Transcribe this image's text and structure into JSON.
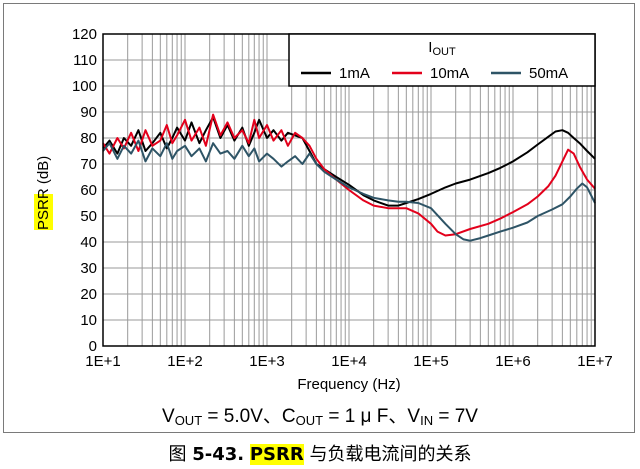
{
  "chart_data": {
    "type": "line",
    "ylabel": "PSRR (dB)",
    "xlabel": "Frequency (Hz)",
    "xscale": "log",
    "xlim": [
      10,
      10000000
    ],
    "ylim": [
      0,
      120
    ],
    "xticks": [
      10,
      100,
      1000,
      10000,
      100000,
      1000000,
      10000000
    ],
    "xticklabels": [
      "1E+1",
      "1E+2",
      "1E+3",
      "1E+4",
      "1E+5",
      "1E+6",
      "1E+7"
    ],
    "yticks": [
      0,
      10,
      20,
      30,
      40,
      50,
      60,
      70,
      80,
      90,
      100,
      110,
      120
    ],
    "grid": true,
    "legend": {
      "placement": "top-right",
      "title_main": "I",
      "title_sub": "OUT",
      "entries": [
        "1mA",
        "10mA",
        "50mA"
      ]
    },
    "series": [
      {
        "name": "1mA",
        "color": "#000000",
        "x": [
          10,
          12,
          15,
          18,
          22,
          27,
          33,
          40,
          50,
          60,
          70,
          80,
          100,
          120,
          150,
          180,
          220,
          270,
          330,
          400,
          500,
          600,
          700,
          800,
          1000,
          1200,
          1500,
          1800,
          2200,
          2700,
          3300,
          4000,
          5000,
          7000,
          10000,
          15000,
          20000,
          30000,
          40000,
          50000,
          70000,
          100000,
          150000,
          200000,
          300000,
          500000,
          700000,
          1000000,
          1500000,
          2000000,
          2700000,
          3300000,
          4000000,
          4700000,
          5500000,
          6500000,
          8000000,
          10000000
        ],
        "y": [
          76,
          79,
          74,
          80,
          77,
          83,
          75,
          78,
          82,
          76,
          80,
          84,
          79,
          86,
          78,
          83,
          88,
          80,
          85,
          79,
          84,
          77,
          82,
          87,
          80,
          83,
          79,
          82,
          81,
          80,
          75,
          70,
          68,
          65,
          62,
          58,
          56,
          54,
          54,
          55,
          56.5,
          58.5,
          61,
          62.5,
          64,
          66.5,
          68.5,
          71,
          74.5,
          77.5,
          80.5,
          82.5,
          83,
          82,
          80,
          78,
          75,
          72
        ]
      },
      {
        "name": "10mA",
        "color": "#e3001b",
        "x": [
          10,
          12,
          15,
          18,
          22,
          27,
          33,
          40,
          50,
          60,
          70,
          80,
          100,
          120,
          150,
          180,
          220,
          270,
          330,
          400,
          500,
          600,
          700,
          800,
          1000,
          1200,
          1500,
          1800,
          2200,
          2700,
          3300,
          4000,
          5000,
          7000,
          10000,
          15000,
          20000,
          30000,
          40000,
          50000,
          70000,
          100000,
          120000,
          150000,
          200000,
          300000,
          500000,
          700000,
          1000000,
          1500000,
          2000000,
          2700000,
          3300000,
          4000000,
          4700000,
          5500000,
          6500000,
          8000000,
          10000000
        ],
        "y": [
          78,
          74,
          80,
          76,
          82,
          75,
          83,
          77,
          79,
          85,
          78,
          81,
          87,
          79,
          84,
          77,
          89,
          81,
          86,
          80,
          83,
          78,
          87,
          80,
          85,
          79,
          83,
          77,
          82,
          80,
          77,
          72,
          68,
          64,
          60,
          56,
          54,
          53,
          53,
          53,
          51,
          47,
          44,
          42.5,
          43,
          45,
          47,
          49,
          51.5,
          54.5,
          57.5,
          61.5,
          65.5,
          71,
          75.5,
          74,
          69,
          64,
          60.5
        ]
      },
      {
        "name": "50mA",
        "color": "#2e5466",
        "x": [
          10,
          12,
          15,
          18,
          22,
          27,
          33,
          40,
          50,
          60,
          70,
          80,
          100,
          120,
          150,
          180,
          220,
          270,
          330,
          400,
          500,
          600,
          700,
          800,
          1000,
          1200,
          1500,
          1800,
          2200,
          2700,
          3300,
          4000,
          5000,
          7000,
          10000,
          15000,
          20000,
          30000,
          40000,
          50000,
          70000,
          100000,
          150000,
          200000,
          250000,
          300000,
          400000,
          500000,
          700000,
          1000000,
          1500000,
          2000000,
          3000000,
          4000000,
          5000000,
          6000000,
          7000000,
          8000000,
          10000000
        ],
        "y": [
          75,
          78,
          72,
          77,
          74,
          79,
          71,
          76,
          73,
          78,
          72,
          75,
          77,
          73,
          76,
          71,
          78,
          74,
          75,
          72,
          77,
          73,
          76,
          71,
          74,
          72,
          69,
          71,
          73,
          70,
          74,
          70,
          67,
          64,
          61,
          58.5,
          57,
          56,
          55.5,
          55.5,
          55,
          53,
          47,
          43,
          41,
          40.5,
          41.5,
          42.5,
          44,
          45.5,
          47.5,
          50,
          52.5,
          54.5,
          57.5,
          60.5,
          62.5,
          61,
          55
        ]
      }
    ]
  },
  "caption": {
    "vout": "V",
    "vout_sub": "OUT",
    "vout_val": " = 5.0V、C",
    "cout_sub": "OUT",
    "cout_val": " = 1 μ F、V",
    "vin_sub": "IN",
    "vin_val": " = 7V"
  },
  "figure": {
    "prefix": "图 ",
    "number": "5-43.",
    "highlight": "PSRR",
    "rest": " 与负载电流间的关系"
  }
}
